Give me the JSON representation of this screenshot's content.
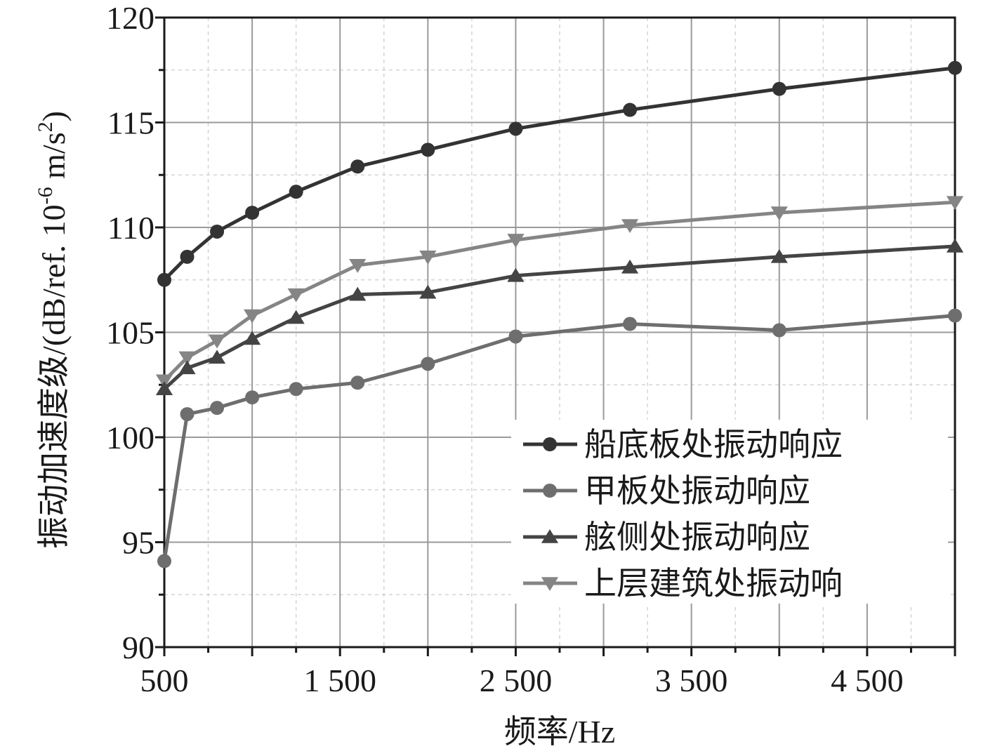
{
  "chart_data": {
    "type": "line",
    "xlabel": "频率/Hz",
    "ylabel_main": "振动加速度级/(dB/ref. 10",
    "ylabel_sup1": "-6",
    "ylabel_mid": " m/s",
    "ylabel_sup2": "2",
    "ylabel_end": ")",
    "xlim": [
      500,
      5000
    ],
    "ylim": [
      90,
      120
    ],
    "x_major_ticks": [
      500,
      1500,
      2500,
      3500,
      4500
    ],
    "x_tick_labels": [
      "500",
      "1 500",
      "2 500",
      "3 500",
      "4 500"
    ],
    "y_major_ticks": [
      90,
      95,
      100,
      105,
      110,
      115,
      120
    ],
    "y_tick_labels": [
      "90",
      "95",
      "100",
      "105",
      "110",
      "115",
      "120"
    ],
    "grid": true,
    "legend_position": "bottom-right",
    "series": [
      {
        "name": "船底板处振动响应",
        "marker": "circle",
        "color": "#333333",
        "x": [
          500,
          630,
          800,
          1000,
          1250,
          1600,
          2000,
          2500,
          3150,
          4000,
          5000
        ],
        "y": [
          107.5,
          108.6,
          109.8,
          110.7,
          111.7,
          112.9,
          113.7,
          114.7,
          115.6,
          116.6,
          117.6
        ]
      },
      {
        "name": "甲板处振动响应",
        "marker": "circle",
        "color": "#6e6e6e",
        "x": [
          500,
          630,
          800,
          1000,
          1250,
          1600,
          2000,
          2500,
          3150,
          4000,
          5000
        ],
        "y": [
          94.1,
          101.1,
          101.4,
          101.9,
          102.3,
          102.6,
          103.5,
          104.8,
          105.4,
          105.1,
          105.8
        ]
      },
      {
        "name": "舷侧处振动响应",
        "marker": "triangle-up",
        "color": "#444444",
        "x": [
          500,
          630,
          800,
          1000,
          1250,
          1600,
          2000,
          2500,
          3150,
          4000,
          5000
        ],
        "y": [
          102.3,
          103.3,
          103.8,
          104.7,
          105.7,
          106.8,
          106.9,
          107.7,
          108.1,
          108.6,
          109.1
        ]
      },
      {
        "name": "上层建筑处振动响",
        "marker": "triangle-down",
        "color": "#858585",
        "x": [
          500,
          630,
          800,
          1000,
          1250,
          1600,
          2000,
          2500,
          3150,
          4000,
          5000
        ],
        "y": [
          102.7,
          103.8,
          104.6,
          105.8,
          106.8,
          108.2,
          108.6,
          109.4,
          110.1,
          110.7,
          111.2
        ]
      }
    ]
  }
}
